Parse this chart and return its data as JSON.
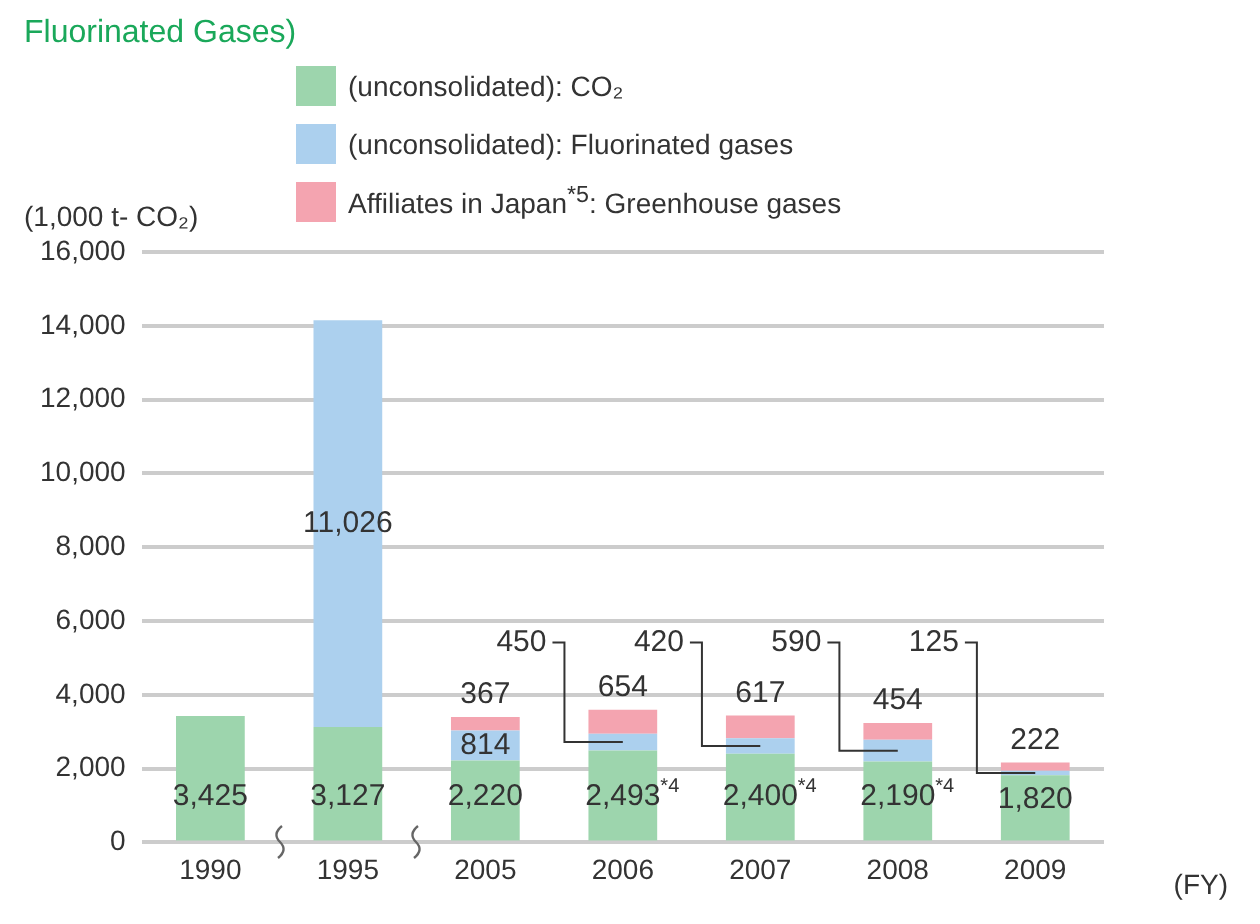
{
  "chart_data": {
    "type": "bar",
    "title": "Fluorinated Gases)",
    "stacked": true,
    "ylabel": "(1,000 t- CO₂)",
    "xlabel": "(FY)",
    "categories": [
      "1990",
      "1995",
      "2005",
      "2006",
      "2007",
      "2008",
      "2009"
    ],
    "series": [
      {
        "name": "(unconsolidated): CO₂",
        "color": "#9dd5ad",
        "values": [
          3425,
          3127,
          2220,
          2493,
          2400,
          2190,
          1820
        ],
        "value_labels": [
          "3,425",
          "3,127",
          "2,220",
          "2,493$^{*4}$",
          "2,400$^{*4}$",
          "2,190$^{*4}$",
          "1,820"
        ]
      },
      {
        "name": "(unconsolidated): Fluorinated gases",
        "color": "#acd0ee",
        "values": [
          null,
          11026,
          814,
          450,
          420,
          590,
          125
        ],
        "value_labels": [
          null,
          "11,026",
          "814",
          "450",
          "420",
          "590",
          "125"
        ]
      },
      {
        "name": "Affiliates in Japan$^{*5}$: Greenhouse gases",
        "color": "#f4a4b0",
        "values": [
          null,
          null,
          367,
          654,
          617,
          454,
          222
        ],
        "value_labels": [
          null,
          null,
          "367",
          "654",
          "617",
          "454",
          "222"
        ]
      }
    ],
    "ylim": [
      0,
      16000
    ],
    "yticks": [
      {
        "value": 0,
        "label": "0"
      },
      {
        "value": 2000,
        "label": "2,000"
      },
      {
        "value": 4000,
        "label": "4,000"
      },
      {
        "value": 6000,
        "label": "6,000"
      },
      {
        "value": 8000,
        "label": "8,000"
      },
      {
        "value": 10000,
        "label": "10,000"
      },
      {
        "value": 12000,
        "label": "12,000"
      },
      {
        "value": 14000,
        "label": "14,000"
      },
      {
        "value": 16000,
        "label": "16,000"
      }
    ],
    "grid": "y",
    "legend": "top"
  }
}
